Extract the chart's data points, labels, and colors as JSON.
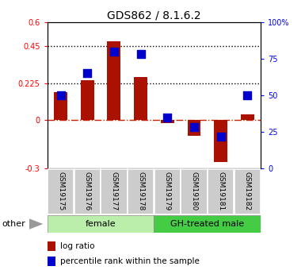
{
  "title": "GDS862 / 8.1.6.2",
  "samples": [
    "GSM19175",
    "GSM19176",
    "GSM19177",
    "GSM19178",
    "GSM19179",
    "GSM19180",
    "GSM19181",
    "GSM19182"
  ],
  "log_ratio": [
    0.17,
    0.24,
    0.48,
    0.26,
    -0.02,
    -0.1,
    -0.26,
    0.03
  ],
  "percentile_rank": [
    50,
    65,
    80,
    78,
    35,
    28,
    22,
    50
  ],
  "ylim_left": [
    -0.3,
    0.6
  ],
  "ylim_right": [
    0,
    100
  ],
  "yticks_left": [
    -0.3,
    0.0,
    0.225,
    0.45,
    0.6
  ],
  "yticks_right": [
    0,
    25,
    50,
    75,
    100
  ],
  "ytick_labels_left": [
    "-0.3",
    "0",
    "0.225",
    "0.45",
    "0.6"
  ],
  "ytick_labels_right": [
    "0",
    "25",
    "50",
    "75",
    "100%"
  ],
  "hlines": [
    0.225,
    0.45
  ],
  "bar_color": "#aa1100",
  "dot_color": "#0000cc",
  "n_female": 4,
  "n_male": 4,
  "group_female_label": "female",
  "group_male_label": "GH-treated male",
  "group_female_color": "#bbeeaa",
  "group_male_color": "#44cc44",
  "other_label": "other",
  "legend_log_ratio": "log ratio",
  "legend_percentile": "percentile rank within the sample",
  "bg_color": "#ffffff",
  "plot_bg_color": "#ffffff",
  "zero_line_color": "#cc2200",
  "bar_width": 0.5,
  "dot_size": 45,
  "tick_label_area_color": "#cccccc",
  "tick_label_fontsize": 6.5,
  "title_fontsize": 10,
  "axis_fontsize": 7
}
